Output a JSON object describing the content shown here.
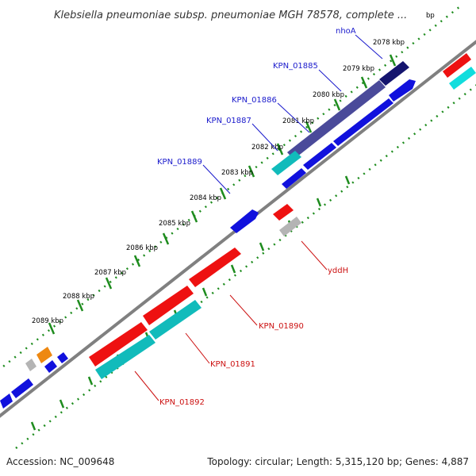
{
  "title": "Klebsiella pneumoniae subsp. pneumoniae MGH 78578, complete ...",
  "title_suffix": "bp",
  "accession": "Accession: NC_009648",
  "summary": "Topology: circular; Length: 5,315,120 bp; Genes: 4,887",
  "tick_labels": [
    "2078 kbp",
    "2079 kbp",
    "2080 kbp",
    "2081 kbp",
    "2082 kbp",
    "2083 kbp",
    "2084 kbp",
    "2085 kbp",
    "2086 kbp",
    "2087 kbp",
    "2088 kbp",
    "2089 kbp"
  ],
  "forward_labels": [
    "nhoA",
    "KPN_01885",
    "KPN_01886",
    "KPN_01887",
    "KPN_01889"
  ],
  "reverse_labels": [
    "yddH",
    "KPN_01890",
    "KPN_01891",
    "KPN_01892"
  ],
  "colors": {
    "forward_label": "#1a1acc",
    "reverse_label": "#cc1111",
    "backbone": "#808080",
    "ticks": "#1e8c1e",
    "cds_blue": "#1111dd",
    "cds_red": "#ee1111",
    "cds_cyan": "#11bbbb",
    "cds_navy": "#14146e",
    "cds_purple": "#4a4a9a",
    "cds_gray": "#b4b4b4",
    "cds_orange": "#ee8811"
  }
}
